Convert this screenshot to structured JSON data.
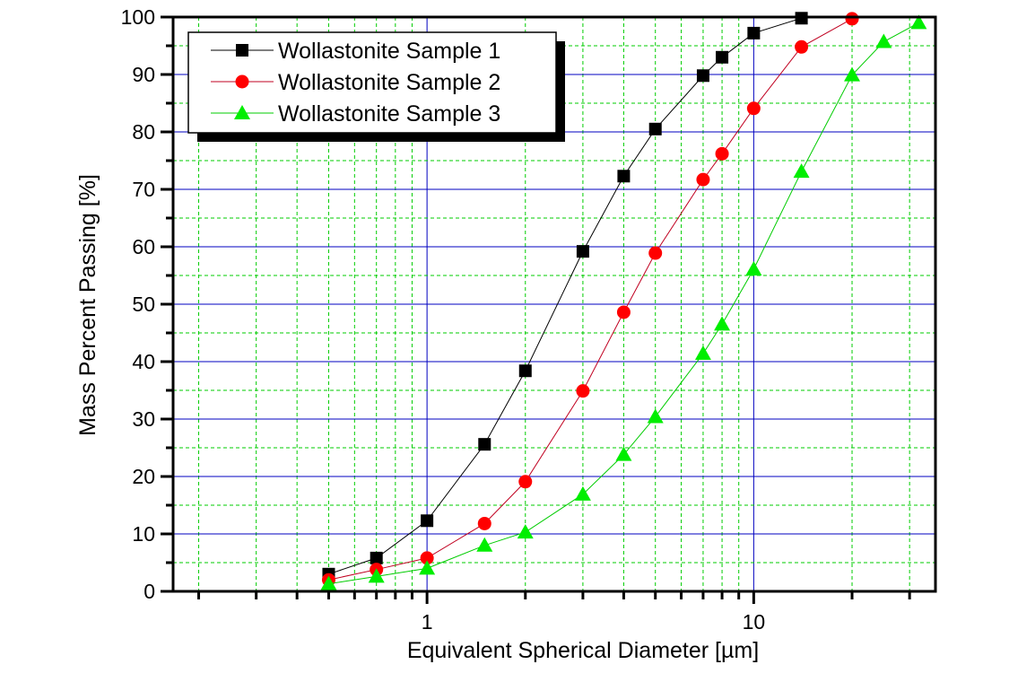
{
  "chart_data": {
    "type": "line",
    "title": "",
    "xlabel": "Equivalent Spherical Diameter [µm]",
    "ylabel": "Mass Percent Passing [%]",
    "xscale": "log",
    "xlim": [
      0.167,
      36
    ],
    "ylim": [
      0,
      100
    ],
    "x_tick_labels": [
      "1",
      "10"
    ],
    "y_ticks": [
      0,
      10,
      20,
      30,
      40,
      50,
      60,
      70,
      80,
      90,
      100
    ],
    "grid": true,
    "legend_placement": "top-left",
    "series": [
      {
        "name": "Wollastonite Sample 1",
        "color": "#000000",
        "marker": "square",
        "x": [
          0.5,
          0.7,
          1,
          1.5,
          2,
          3,
          4,
          5,
          7,
          8,
          10,
          14
        ],
        "y": [
          3.0,
          5.8,
          12.3,
          25.6,
          38.4,
          59.2,
          72.3,
          80.5,
          89.8,
          93.0,
          97.2,
          99.8
        ]
      },
      {
        "name": "Wollastonite Sample 2",
        "color": "#ff0000",
        "marker": "circle",
        "x": [
          0.5,
          0.7,
          1,
          1.5,
          2,
          3,
          4,
          5,
          7,
          8,
          10,
          14,
          20
        ],
        "y": [
          2.0,
          3.8,
          5.8,
          11.8,
          19.1,
          34.9,
          48.6,
          58.9,
          71.7,
          76.2,
          84.1,
          94.8,
          99.7
        ]
      },
      {
        "name": "Wollastonite Sample 3",
        "color": "#00ee00",
        "marker": "triangle",
        "x": [
          0.5,
          0.7,
          1,
          1.5,
          2,
          3,
          4,
          5,
          7,
          8,
          10,
          14,
          20,
          25,
          32
        ],
        "y": [
          1.3,
          2.6,
          4.0,
          8.0,
          10.3,
          16.9,
          23.8,
          30.4,
          41.4,
          46.5,
          56.1,
          73.1,
          89.9,
          95.7,
          99.0
        ]
      }
    ]
  }
}
